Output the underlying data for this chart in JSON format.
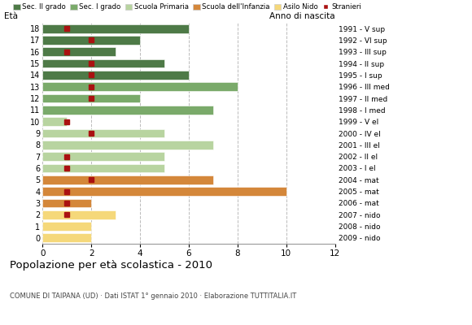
{
  "ages": [
    18,
    17,
    16,
    15,
    14,
    13,
    12,
    11,
    10,
    9,
    8,
    7,
    6,
    5,
    4,
    3,
    2,
    1,
    0
  ],
  "years": [
    "1991 - V sup",
    "1992 - VI sup",
    "1993 - III sup",
    "1994 - II sup",
    "1995 - I sup",
    "1996 - III med",
    "1997 - II med",
    "1998 - I med",
    "1999 - V el",
    "2000 - IV el",
    "2001 - III el",
    "2002 - II el",
    "2003 - I el",
    "2004 - mat",
    "2005 - mat",
    "2006 - mat",
    "2007 - nido",
    "2008 - nido",
    "2009 - nido"
  ],
  "bar_values": [
    6,
    4,
    3,
    5,
    6,
    8,
    4,
    7,
    1,
    5,
    7,
    5,
    5,
    7,
    10,
    2,
    3,
    2,
    2
  ],
  "bar_colors": [
    "#4e7a47",
    "#4e7a47",
    "#4e7a47",
    "#4e7a47",
    "#4e7a47",
    "#7aaa6a",
    "#7aaa6a",
    "#7aaa6a",
    "#b8d4a0",
    "#b8d4a0",
    "#b8d4a0",
    "#b8d4a0",
    "#b8d4a0",
    "#d4873a",
    "#d4873a",
    "#d4873a",
    "#f5d87a",
    "#f5d87a",
    "#f5d87a"
  ],
  "stranieri_x": [
    1,
    2,
    1,
    2,
    2,
    2,
    2,
    0,
    1,
    2,
    0,
    1,
    1,
    2,
    1,
    1,
    1,
    0,
    0
  ],
  "legend_labels": [
    "Sec. II grado",
    "Sec. I grado",
    "Scuola Primaria",
    "Scuola dell'Infanzia",
    "Asilo Nido",
    "Stranieri"
  ],
  "legend_colors": [
    "#4e7a47",
    "#7aaa6a",
    "#b8d4a0",
    "#d4873a",
    "#f5d87a",
    "#aa1111"
  ],
  "title": "Popolazione per età scolastica - 2010",
  "subtitle": "COMUNE DI TAIPANA (UD) · Dati ISTAT 1° gennaio 2010 · Elaborazione TUTTITALIA.IT",
  "ylabel_age": "Età",
  "ylabel_year": "Anno di nascita",
  "xlim": [
    0,
    12
  ],
  "xticks": [
    0,
    2,
    4,
    6,
    8,
    10,
    12
  ],
  "bg_color": "#ffffff",
  "bar_height": 0.75
}
